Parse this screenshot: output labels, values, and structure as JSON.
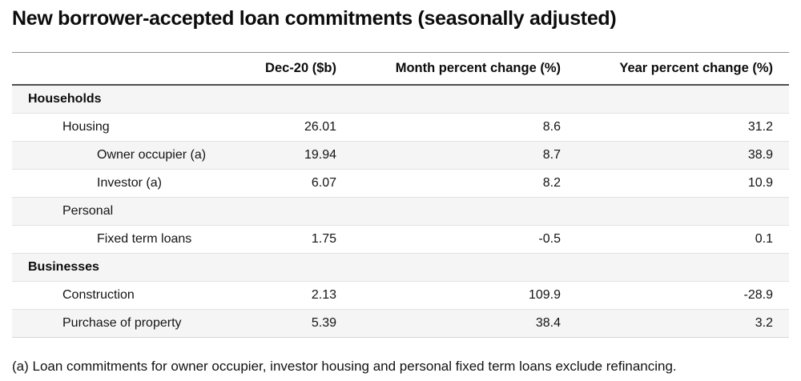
{
  "title": "New borrower-accepted loan commitments (seasonally adjusted)",
  "table": {
    "columns": [
      "",
      "Dec-20 ($b)",
      "Month percent change (%)",
      "Year percent change (%)"
    ],
    "rows": [
      {
        "label": "Households",
        "indent": 0,
        "bold": true,
        "shaded": true,
        "values": [
          "",
          "",
          ""
        ]
      },
      {
        "label": "Housing",
        "indent": 1,
        "bold": false,
        "shaded": false,
        "values": [
          "26.01",
          "8.6",
          "31.2"
        ]
      },
      {
        "label": "Owner occupier (a)",
        "indent": 2,
        "bold": false,
        "shaded": true,
        "values": [
          "19.94",
          "8.7",
          "38.9"
        ]
      },
      {
        "label": "Investor (a)",
        "indent": 2,
        "bold": false,
        "shaded": false,
        "values": [
          "6.07",
          "8.2",
          "10.9"
        ]
      },
      {
        "label": "Personal",
        "indent": 1,
        "bold": false,
        "shaded": true,
        "values": [
          "",
          "",
          ""
        ]
      },
      {
        "label": "Fixed term loans",
        "indent": 2,
        "bold": false,
        "shaded": false,
        "values": [
          "1.75",
          "-0.5",
          "0.1"
        ]
      },
      {
        "label": "Businesses",
        "indent": 0,
        "bold": true,
        "shaded": true,
        "values": [
          "",
          "",
          ""
        ]
      },
      {
        "label": "Construction",
        "indent": 1,
        "bold": false,
        "shaded": false,
        "values": [
          "2.13",
          "109.9",
          "-28.9"
        ]
      },
      {
        "label": "Purchase of property",
        "indent": 1,
        "bold": false,
        "shaded": true,
        "values": [
          "5.39",
          "38.4",
          "3.2"
        ]
      }
    ]
  },
  "footnote": "(a) Loan commitments for owner occupier, investor housing and personal fixed term loans exclude refinancing.",
  "colors": {
    "stripe": "#f5f5f5",
    "row_divider": "#e2e2e2",
    "table_top_border": "#8f8f8f",
    "header_bottom_border": "#4e4e4e",
    "text": "#121212"
  },
  "chart_data": {
    "type": "table",
    "title": "New borrower-accepted loan commitments (seasonally adjusted)",
    "columns": [
      "Dec-20 ($b)",
      "Month percent change (%)",
      "Year percent change (%)"
    ],
    "rows": [
      {
        "label": "Households",
        "group": true,
        "dec20_bn": null,
        "month_pct_change": null,
        "year_pct_change": null
      },
      {
        "label": "Housing",
        "dec20_bn": 26.01,
        "month_pct_change": 8.6,
        "year_pct_change": 31.2
      },
      {
        "label": "Owner occupier (a)",
        "dec20_bn": 19.94,
        "month_pct_change": 8.7,
        "year_pct_change": 38.9
      },
      {
        "label": "Investor (a)",
        "dec20_bn": 6.07,
        "month_pct_change": 8.2,
        "year_pct_change": 10.9
      },
      {
        "label": "Personal",
        "group": true,
        "dec20_bn": null,
        "month_pct_change": null,
        "year_pct_change": null
      },
      {
        "label": "Fixed term loans",
        "dec20_bn": 1.75,
        "month_pct_change": -0.5,
        "year_pct_change": 0.1
      },
      {
        "label": "Businesses",
        "group": true,
        "dec20_bn": null,
        "month_pct_change": null,
        "year_pct_change": null
      },
      {
        "label": "Construction",
        "dec20_bn": 2.13,
        "month_pct_change": 109.9,
        "year_pct_change": -28.9
      },
      {
        "label": "Purchase of property",
        "dec20_bn": 5.39,
        "month_pct_change": 38.4,
        "year_pct_change": 3.2
      }
    ],
    "footnote": "(a) Loan commitments for owner occupier, investor housing and personal fixed term loans exclude refinancing."
  }
}
